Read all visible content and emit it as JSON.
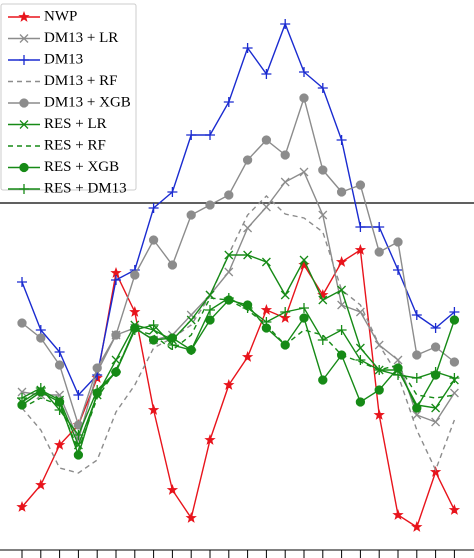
{
  "chart_data": {
    "type": "line",
    "x": [
      1,
      2,
      3,
      4,
      5,
      6,
      7,
      8,
      9,
      10,
      11,
      12,
      13,
      14,
      15,
      16,
      17,
      18,
      19,
      20,
      21,
      22,
      23,
      24
    ],
    "xlim": [
      0,
      25
    ],
    "xticks": [
      1,
      2,
      3,
      4,
      5,
      6,
      7,
      8,
      9,
      10,
      11,
      12,
      13,
      14,
      15,
      16,
      17,
      18,
      19,
      20,
      21,
      22,
      23,
      24
    ],
    "ylim": [
      0,
      550
    ],
    "hline": 347,
    "legend": "upper left",
    "series": [
      {
        "name": "NWP",
        "color": "#e8141c",
        "marker": "star",
        "dash": false,
        "values": [
          43,
          65,
          105,
          125,
          172,
          277,
          238,
          140,
          60,
          32,
          110,
          165,
          193,
          240,
          232,
          285,
          255,
          288,
          300,
          135,
          35,
          23,
          78,
          40
        ]
      },
      {
        "name": "DM13 + LR",
        "color": "#8c8c8c",
        "marker": "x",
        "dash": false,
        "values": [
          158,
          155,
          155,
          110,
          178,
          215,
          222,
          210,
          215,
          235,
          255,
          278,
          322,
          343,
          368,
          378,
          335,
          245,
          238,
          205,
          190,
          135,
          128,
          157
        ]
      },
      {
        "name": "DM13",
        "color": "#1a2bd0",
        "marker": "plus",
        "dash": false,
        "values": [
          268,
          220,
          198,
          155,
          175,
          270,
          280,
          342,
          358,
          415,
          415,
          448,
          502,
          476,
          526,
          478,
          462,
          410,
          323,
          323,
          280,
          235,
          222,
          238
        ]
      },
      {
        "name": "DM13 + RF",
        "color": "#8c8c8c",
        "marker": "none",
        "dash": true,
        "values": [
          142,
          120,
          82,
          77,
          90,
          138,
          165,
          202,
          212,
          225,
          254,
          296,
          335,
          354,
          336,
          332,
          318,
          260,
          245,
          205,
          175,
          120,
          80,
          130
        ]
      },
      {
        "name": "DM13 + XGB",
        "color": "#8c8c8c",
        "marker": "circle",
        "dash": false,
        "values": [
          227,
          212,
          185,
          125,
          182,
          215,
          275,
          310,
          285,
          335,
          345,
          355,
          390,
          410,
          395,
          452,
          380,
          358,
          365,
          298,
          308,
          195,
          203,
          188
        ]
      },
      {
        "name": "RES + LR",
        "color": "#168a16",
        "marker": "x",
        "dash": false,
        "values": [
          148,
          160,
          150,
          105,
          155,
          190,
          225,
          220,
          210,
          230,
          255,
          295,
          295,
          288,
          255,
          290,
          250,
          260,
          202,
          180,
          180,
          145,
          142,
          170
        ]
      },
      {
        "name": "RES + RF",
        "color": "#168a16",
        "marker": "none",
        "dash": true,
        "values": [
          142,
          152,
          145,
          100,
          152,
          180,
          220,
          215,
          200,
          215,
          252,
          250,
          240,
          225,
          205,
          220,
          215,
          195,
          188,
          180,
          185,
          155,
          152,
          155
        ]
      },
      {
        "name": "RES + XGB",
        "color": "#168a16",
        "marker": "circle",
        "dash": false,
        "values": [
          145,
          158,
          148,
          95,
          157,
          178,
          222,
          210,
          212,
          200,
          230,
          250,
          245,
          222,
          205,
          232,
          170,
          195,
          148,
          160,
          182,
          142,
          175,
          230
        ]
      },
      {
        "name": "RES + DM13",
        "color": "#168a16",
        "marker": "plus",
        "dash": false,
        "values": [
          152,
          162,
          140,
          115,
          160,
          178,
          220,
          225,
          205,
          200,
          240,
          252,
          242,
          228,
          238,
          242,
          210,
          220,
          190,
          180,
          175,
          172,
          178,
          172
        ]
      }
    ]
  }
}
